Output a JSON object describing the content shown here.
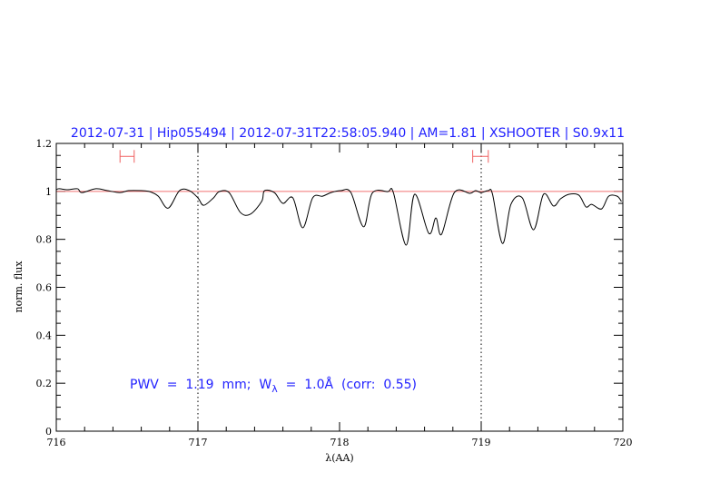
{
  "chart_data": {
    "type": "line",
    "title": "2012-07-31 | Hip055494 | 2012-07-31T22:58:05.940 | AM=1.81 | XSHOOTER | S0.9x11",
    "xlabel": "λ(AA)",
    "ylabel": "norm. flux",
    "xlim": [
      716,
      720
    ],
    "ylim": [
      0,
      1.2
    ],
    "xticks": [
      "716",
      "717",
      "718",
      "719",
      "720"
    ],
    "yticks": [
      "0",
      "0.2",
      "0.4",
      "0.6",
      "0.8",
      "1",
      "1.2"
    ],
    "grid": false,
    "annotation": {
      "pre": "PWV  =  1.19  mm;  W",
      "sub": "λ",
      "post": "  =  1.0Å  (corr:  0.55)"
    },
    "continuum_level": 1.0,
    "vertical_markers": [
      717,
      719
    ],
    "range_markers": [
      {
        "x1": 716.45,
        "x2": 716.55,
        "y": 1.146
      },
      {
        "x1": 718.94,
        "x2": 719.05,
        "y": 1.146
      }
    ],
    "series": [
      {
        "x": [
          716.0,
          716.02,
          716.08,
          716.15,
          716.18,
          716.28,
          716.36,
          716.45,
          716.51,
          716.6,
          716.66,
          716.72,
          716.79,
          716.87,
          716.94,
          717.0,
          717.04,
          717.11,
          717.15,
          717.22,
          717.3,
          717.37,
          717.45,
          717.47,
          717.54,
          717.6,
          717.67,
          717.74,
          717.81,
          717.88,
          717.94,
          718.01,
          718.08,
          718.17,
          718.23,
          718.34,
          718.38,
          718.47,
          718.53,
          718.63,
          718.68,
          718.72,
          718.81,
          718.92,
          718.96,
          719.0,
          719.05,
          719.08,
          719.15,
          719.21,
          719.29,
          719.37,
          719.44,
          719.51,
          719.56,
          719.62,
          719.69,
          719.74,
          719.78,
          719.85,
          719.9,
          719.96,
          719.99
        ],
        "y": [
          1.007,
          1.011,
          1.007,
          1.011,
          0.995,
          1.011,
          1.003,
          0.995,
          1.003,
          1.003,
          0.999,
          0.98,
          0.93,
          1.003,
          1.003,
          0.973,
          0.942,
          0.973,
          0.999,
          0.995,
          0.912,
          0.905,
          0.958,
          1.003,
          0.995,
          0.95,
          0.973,
          0.848,
          0.973,
          0.98,
          0.995,
          1.003,
          0.995,
          0.852,
          0.992,
          0.999,
          0.995,
          0.776,
          0.988,
          0.825,
          0.889,
          0.821,
          0.995,
          0.992,
          1.003,
          0.995,
          1.003,
          0.988,
          0.783,
          0.946,
          0.973,
          0.84,
          0.988,
          0.939,
          0.969,
          0.988,
          0.984,
          0.935,
          0.946,
          0.927,
          0.98,
          0.98,
          0.958
        ]
      }
    ],
    "colors": {
      "title": "#1f1fff",
      "spectrum": "#000000",
      "continuum": "#f07070",
      "range_marker": "#f06060"
    }
  }
}
